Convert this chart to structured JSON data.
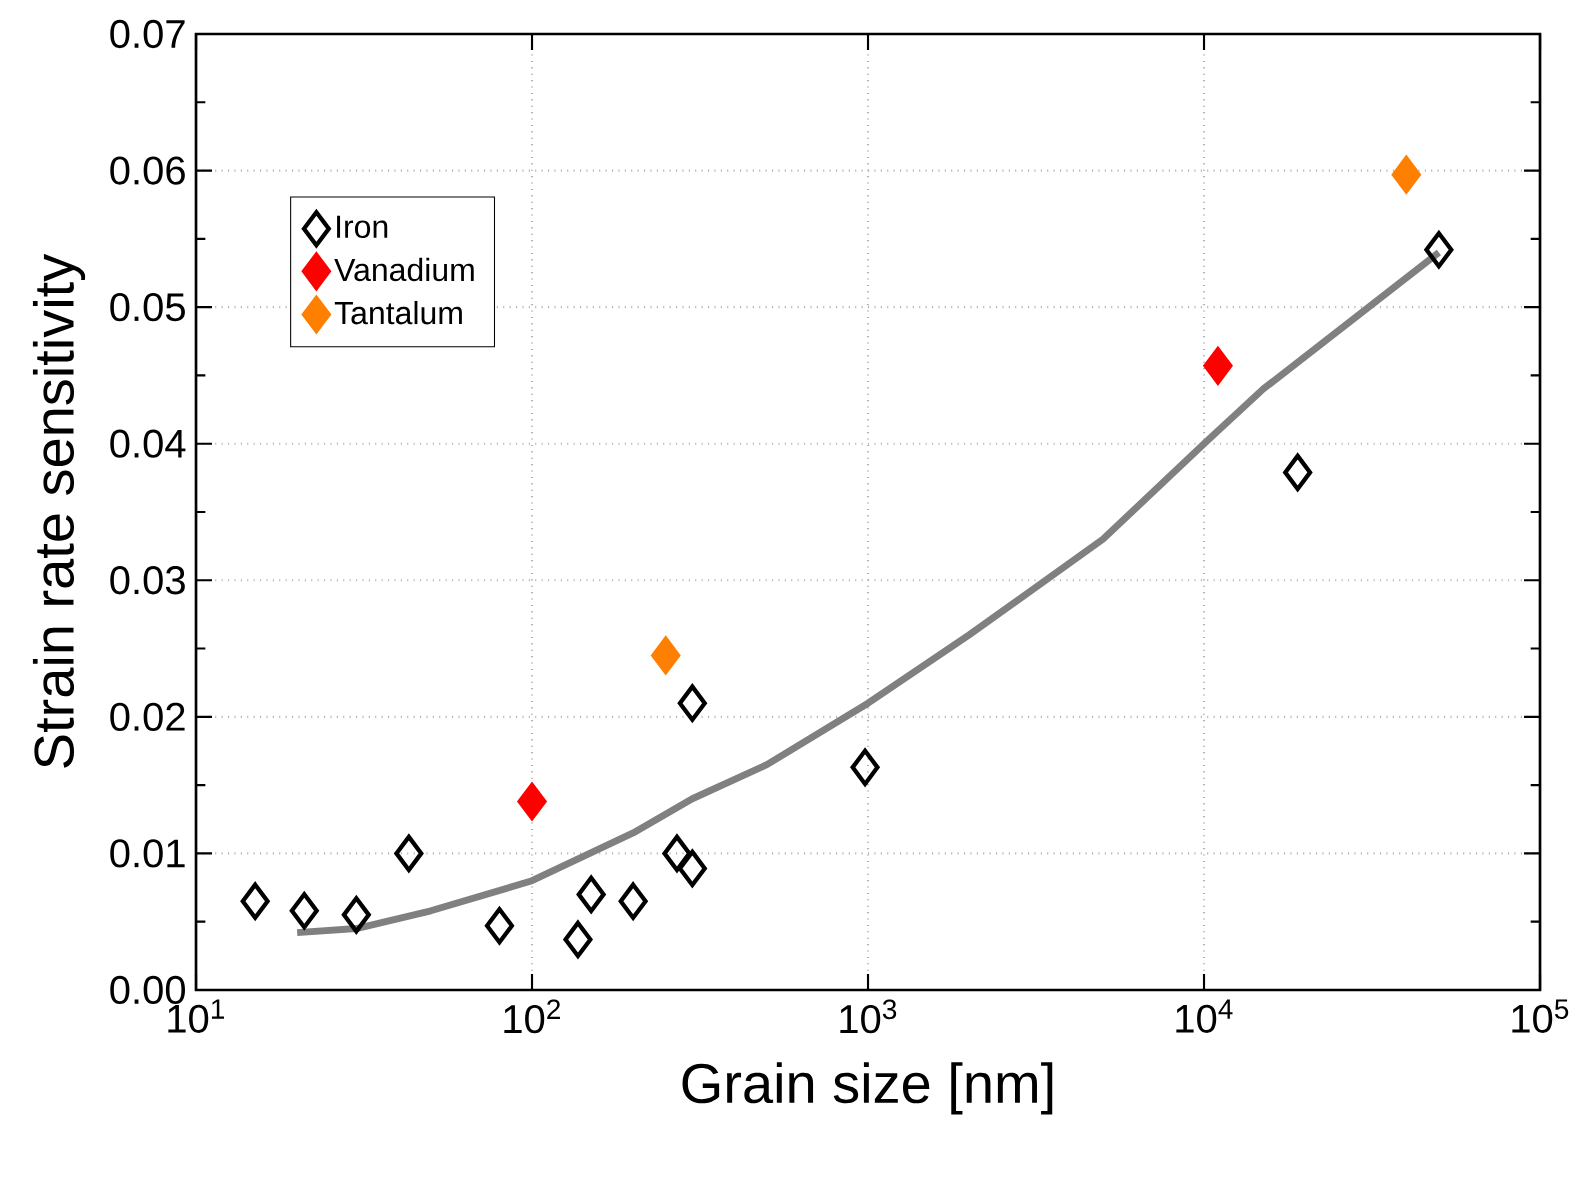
{
  "chart_data": {
    "type": "scatter",
    "xlabel": "Grain size [nm]",
    "ylabel": "Strain rate sensitivity",
    "log": "x",
    "grid": true,
    "legend": "top left",
    "marker": "diamond",
    "xlim": [
      10,
      100000
    ],
    "xticks": [
      {
        "value": 10,
        "label": "10$^{1}$"
      },
      {
        "value": 100,
        "label": "10$^{2}$"
      },
      {
        "value": 1000,
        "label": "10$^{3}$"
      },
      {
        "value": 10000,
        "label": "10$^{4}$"
      },
      {
        "value": 100000,
        "label": "10$^{5}$"
      }
    ],
    "ylim": [
      0,
      0.07
    ],
    "yticks": [
      {
        "value": 0,
        "label": "0.00"
      },
      {
        "value": 0.01,
        "label": "0.01"
      },
      {
        "value": 0.02,
        "label": "0.02"
      },
      {
        "value": 0.03,
        "label": "0.03"
      },
      {
        "value": 0.04,
        "label": "0.04"
      },
      {
        "value": 0.05,
        "label": "0.05"
      },
      {
        "value": 0.06,
        "label": "0.06"
      },
      {
        "value": 0.07,
        "label": "0.07"
      }
    ],
    "series": [
      {
        "type": "line",
        "color": "#808080",
        "marker": "none",
        "x": [
          20,
          30,
          50,
          100,
          200,
          300,
          500,
          1000,
          2000,
          5000,
          10000,
          15000,
          50000
        ],
        "values": [
          0.0042,
          0.0045,
          0.0058,
          0.008,
          0.0115,
          0.014,
          0.0165,
          0.021,
          0.026,
          0.033,
          0.04,
          0.044,
          0.054
        ]
      },
      {
        "name": "Iron",
        "color": "#000000",
        "x": [
          15,
          21,
          30,
          43,
          80,
          137,
          150,
          200,
          270,
          300,
          300,
          980,
          19000,
          50000
        ],
        "values": [
          0.0065,
          0.0058,
          0.0055,
          0.01,
          0.0047,
          0.0037,
          0.007,
          0.0065,
          0.01,
          0.0089,
          0.021,
          0.0163,
          0.0379,
          0.0542
        ]
      },
      {
        "name": "Vanadium",
        "color": "#ff0000",
        "x": [
          100,
          11000
        ],
        "values": [
          0.0138,
          0.0457
        ]
      },
      {
        "name": "Tantalum",
        "color": "#ff8000",
        "x": [
          250,
          40000
        ],
        "values": [
          0.0245,
          0.0597
        ]
      }
    ]
  }
}
